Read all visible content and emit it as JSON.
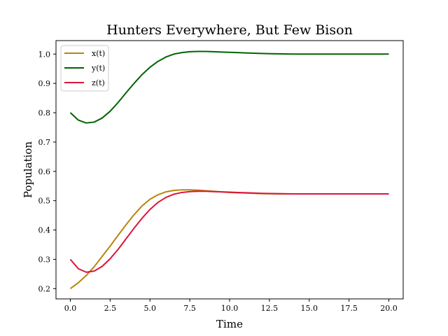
{
  "chart_data": {
    "type": "line",
    "title": "Hunters Everywhere, But Few Bison",
    "xlabel": "Time",
    "ylabel": "Population",
    "xlim": [
      -0.9,
      20.9
    ],
    "ylim": [
      0.165,
      1.046
    ],
    "xticks": [
      0,
      2.5,
      5,
      7.5,
      10,
      12.5,
      15,
      17.5,
      20
    ],
    "xtick_labels": [
      "0.0",
      "2.5",
      "5.0",
      "7.5",
      "10.0",
      "12.5",
      "15.0",
      "17.5",
      "20.0"
    ],
    "yticks": [
      0.2,
      0.3,
      0.4,
      0.5,
      0.6,
      0.7,
      0.8,
      0.9,
      1.0
    ],
    "ytick_labels": [
      "0.2",
      "0.3",
      "0.4",
      "0.5",
      "0.6",
      "0.7",
      "0.8",
      "0.9",
      "1.0"
    ],
    "grid": false,
    "legend_position": "top-left",
    "series": [
      {
        "name": "x(t)",
        "color": "#b8860b",
        "x": [
          0,
          0.5,
          1,
          1.5,
          2,
          2.5,
          3,
          3.5,
          4,
          4.5,
          5,
          5.5,
          6,
          6.5,
          7,
          7.5,
          8,
          8.5,
          9,
          9.5,
          10,
          10.5,
          11,
          11.5,
          12,
          13,
          14,
          15,
          16,
          17,
          18,
          19,
          20
        ],
        "y": [
          0.2,
          0.22,
          0.245,
          0.275,
          0.31,
          0.345,
          0.382,
          0.418,
          0.452,
          0.482,
          0.505,
          0.52,
          0.53,
          0.535,
          0.537,
          0.537,
          0.536,
          0.534,
          0.532,
          0.53,
          0.528,
          0.527,
          0.526,
          0.525,
          0.524,
          0.523,
          0.523,
          0.523,
          0.523,
          0.523,
          0.523,
          0.523,
          0.523
        ]
      },
      {
        "name": "y(t)",
        "color": "#006400",
        "x": [
          0,
          0.5,
          1,
          1.5,
          2,
          2.5,
          3,
          3.5,
          4,
          4.5,
          5,
          5.5,
          6,
          6.5,
          7,
          7.5,
          8,
          8.5,
          9,
          9.5,
          10,
          10.5,
          11,
          11.5,
          12,
          13,
          14,
          15,
          16,
          17,
          18,
          19,
          20
        ],
        "y": [
          0.8,
          0.775,
          0.765,
          0.768,
          0.782,
          0.805,
          0.835,
          0.868,
          0.9,
          0.93,
          0.955,
          0.975,
          0.99,
          1.0,
          1.005,
          1.008,
          1.009,
          1.009,
          1.008,
          1.007,
          1.006,
          1.005,
          1.004,
          1.003,
          1.002,
          1.001,
          1.0,
          1.0,
          1.0,
          1.0,
          1.0,
          1.0,
          1.0
        ]
      },
      {
        "name": "z(t)",
        "color": "#dc143c",
        "x": [
          0,
          0.5,
          1,
          1.5,
          2,
          2.5,
          3,
          3.5,
          4,
          4.5,
          5,
          5.5,
          6,
          6.5,
          7,
          7.5,
          8,
          8.5,
          9,
          9.5,
          10,
          10.5,
          11,
          11.5,
          12,
          13,
          14,
          15,
          16,
          17,
          18,
          19,
          20
        ],
        "y": [
          0.3,
          0.268,
          0.256,
          0.26,
          0.276,
          0.302,
          0.334,
          0.37,
          0.406,
          0.44,
          0.47,
          0.494,
          0.511,
          0.522,
          0.528,
          0.531,
          0.532,
          0.532,
          0.531,
          0.53,
          0.529,
          0.528,
          0.527,
          0.526,
          0.525,
          0.524,
          0.523,
          0.523,
          0.523,
          0.523,
          0.523,
          0.523,
          0.523
        ]
      }
    ]
  }
}
